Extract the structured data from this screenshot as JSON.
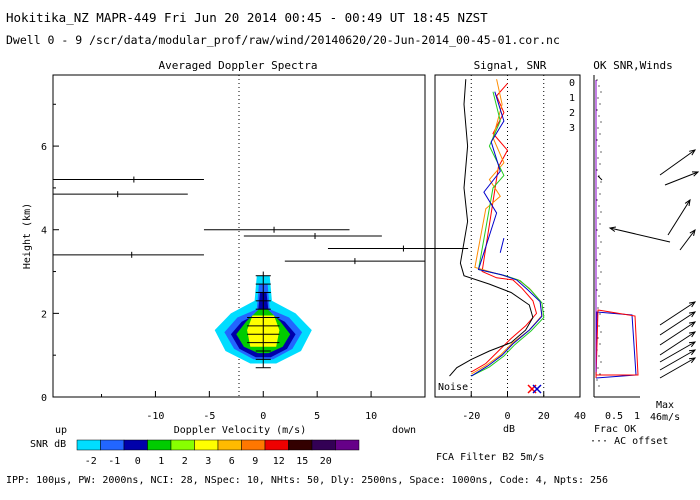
{
  "header": {
    "line1": "Hokitika_NZ  MAPR-449  Fri Jun 20 2014 00:45 - 00:49 UT 18:45 NZST",
    "line2": "Dwell  0 - 9   /scr/data/modular_prof/raw/wind/20140620/20-Jun-2014_00-45-01.cor.nc"
  },
  "footer": {
    "params": "IPP: 100μs, PW: 2000ns, NCI: 28, NSpec: 10, NHts: 50, Dly: 2500ns, Space: 1000ns, Code: 4, Npts: 256",
    "filter": "FCA Filter B2  5m/s"
  },
  "colors": {
    "snr_palette": [
      "#00ddff",
      "#2266ff",
      "#0000aa",
      "#00cc00",
      "#88ff00",
      "#ffff00",
      "#ffbb00",
      "#ff7700",
      "#ee0000",
      "#330000",
      "#330055",
      "#660088"
    ],
    "series": [
      "#ff0000",
      "#ff8c00",
      "#22cc22",
      "#0000cc"
    ],
    "axis": "#000000",
    "ac_offset": "#8800cc"
  },
  "chart_data": [
    {
      "type": "heatmap",
      "title": "Averaged Doppler Spectra",
      "xlabel": "Doppler Velocity (m/s)",
      "ylabel": "Height (km)",
      "xlim": [
        -19.5,
        15
      ],
      "ylim": [
        0,
        7.7
      ],
      "xticks": [
        -10,
        -5,
        0,
        5,
        10
      ],
      "yticks": [
        0,
        2,
        4,
        6
      ],
      "x_end_labels": {
        "left": "up",
        "right": "down"
      },
      "colorbar": {
        "label": "SNR dB",
        "ticks": [
          "-2",
          "-1",
          "0",
          "1",
          "2",
          "3",
          "6",
          "9",
          "12",
          "15",
          "20"
        ]
      },
      "snr_blob": {
        "center_velocity": 0,
        "height_range": [
          0.7,
          3.0
        ],
        "contours": [
          {
            "level": "-2",
            "points": [
              [
                -0.6,
                2.9
              ],
              [
                0.6,
                2.9
              ],
              [
                0.8,
                2.3
              ],
              [
                3.0,
                2.0
              ],
              [
                4.5,
                1.6
              ],
              [
                3.5,
                1.1
              ],
              [
                1.2,
                0.8
              ],
              [
                -1.2,
                0.8
              ],
              [
                -3.5,
                1.1
              ],
              [
                -4.5,
                1.6
              ],
              [
                -3.0,
                2.0
              ],
              [
                -0.8,
                2.3
              ]
            ]
          },
          {
            "level": "-1",
            "points": [
              [
                -0.4,
                2.7
              ],
              [
                0.4,
                2.7
              ],
              [
                0.6,
                2.1
              ],
              [
                2.4,
                1.9
              ],
              [
                3.6,
                1.55
              ],
              [
                2.7,
                1.15
              ],
              [
                0.9,
                0.9
              ],
              [
                -0.9,
                0.9
              ],
              [
                -2.7,
                1.15
              ],
              [
                -3.6,
                1.55
              ],
              [
                -2.4,
                1.9
              ],
              [
                -0.6,
                2.1
              ]
            ]
          },
          {
            "level": "0",
            "points": [
              [
                -0.3,
                2.5
              ],
              [
                0.3,
                2.5
              ],
              [
                0.5,
                2.0
              ],
              [
                2.0,
                1.8
              ],
              [
                3.0,
                1.5
              ],
              [
                2.2,
                1.15
              ],
              [
                0.7,
                0.95
              ],
              [
                -0.7,
                0.95
              ],
              [
                -2.2,
                1.15
              ],
              [
                -3.0,
                1.5
              ],
              [
                -2.0,
                1.8
              ],
              [
                -0.5,
                2.0
              ]
            ]
          },
          {
            "level": "1",
            "points": [
              [
                -0.4,
                2.1
              ],
              [
                0.4,
                2.1
              ],
              [
                1.6,
                1.8
              ],
              [
                2.5,
                1.5
              ],
              [
                1.8,
                1.2
              ],
              [
                0.5,
                1.05
              ],
              [
                -0.5,
                1.05
              ],
              [
                -1.8,
                1.2
              ],
              [
                -2.5,
                1.5
              ],
              [
                -1.6,
                1.8
              ]
            ]
          },
          {
            "level": "3",
            "points": [
              [
                -1.0,
                1.95
              ],
              [
                1.0,
                1.95
              ],
              [
                1.5,
                1.6
              ],
              [
                1.2,
                1.2
              ],
              [
                -1.2,
                1.2
              ],
              [
                -1.5,
                1.6
              ]
            ]
          }
        ]
      },
      "wide_spectra": [
        {
          "height": 5.2,
          "xmin": -19.5,
          "xmax": -5.5,
          "center": -12
        },
        {
          "height": 4.85,
          "xmin": -19.5,
          "xmax": -7,
          "center": -13.5
        },
        {
          "height": 4.0,
          "xmin": -5.5,
          "xmax": 8,
          "center": 1
        },
        {
          "height": 3.85,
          "xmin": -1.8,
          "xmax": 11,
          "center": 4.8
        },
        {
          "height": 3.55,
          "xmin": 6,
          "xmax": 19,
          "center": 13
        },
        {
          "height": 3.4,
          "xmin": -19.5,
          "xmax": -5.5,
          "center": -12.2
        },
        {
          "height": 3.25,
          "xmin": 2,
          "xmax": 15,
          "center": 8.5
        }
      ]
    },
    {
      "type": "line",
      "title": "Signal, SNR",
      "xlabel": "dB",
      "xlim": [
        -40,
        40
      ],
      "ylim": [
        0,
        7.7
      ],
      "xticks": [
        -20,
        0,
        20,
        40
      ],
      "noise_label": "Noise",
      "legend": [
        "0",
        "1",
        "2",
        "3"
      ],
      "series": [
        {
          "name": "0",
          "points": [
            [
              -20,
              0.6
            ],
            [
              -12,
              0.8
            ],
            [
              -5,
              1.1
            ],
            [
              2,
              1.4
            ],
            [
              10,
              1.7
            ],
            [
              16,
              2.0
            ],
            [
              14,
              2.3
            ],
            [
              8,
              2.6
            ],
            [
              3,
              2.8
            ],
            [
              -6,
              2.85
            ],
            [
              -14,
              3.0
            ],
            [
              -5,
              5.5
            ],
            [
              0,
              5.9
            ],
            [
              -8,
              6.3
            ],
            [
              -2,
              6.8
            ],
            [
              -6,
              7.2
            ],
            [
              0,
              7.5
            ]
          ]
        },
        {
          "name": "1",
          "points": [
            [
              -20,
              0.55
            ],
            [
              -12,
              0.75
            ],
            [
              -4,
              1.0
            ],
            [
              3,
              1.3
            ],
            [
              12,
              1.6
            ],
            [
              19,
              1.95
            ],
            [
              18,
              2.3
            ],
            [
              12,
              2.6
            ],
            [
              6,
              2.8
            ],
            [
              -2,
              2.9
            ],
            [
              -18,
              3.1
            ],
            [
              -12,
              4.5
            ],
            [
              -4,
              4.8
            ],
            [
              -10,
              5.2
            ],
            [
              -2,
              5.6
            ],
            [
              -8,
              6.2
            ],
            [
              -3,
              7.0
            ],
            [
              -6,
              7.6
            ]
          ]
        },
        {
          "name": "2",
          "points": [
            [
              -20,
              0.5
            ],
            [
              -10,
              0.72
            ],
            [
              -2,
              0.98
            ],
            [
              4,
              1.25
            ],
            [
              13,
              1.58
            ],
            [
              20,
              1.9
            ],
            [
              19,
              2.25
            ],
            [
              13,
              2.55
            ],
            [
              7,
              2.78
            ],
            [
              -1,
              2.9
            ],
            [
              -16,
              3.05
            ],
            [
              -8,
              5.0
            ],
            [
              -2,
              5.3
            ],
            [
              -10,
              6.0
            ],
            [
              -4,
              6.6
            ],
            [
              -8,
              7.3
            ]
          ]
        },
        {
          "name": "3",
          "points": [
            [
              -20,
              0.5
            ],
            [
              -11,
              0.74
            ],
            [
              -3,
              1.0
            ],
            [
              3,
              1.27
            ],
            [
              12,
              1.6
            ],
            [
              19,
              1.93
            ],
            [
              18,
              2.28
            ],
            [
              11,
              2.57
            ],
            [
              5,
              2.8
            ],
            [
              -3,
              2.92
            ],
            [
              -16,
              3.05
            ],
            [
              -6,
              4.4
            ],
            [
              -13,
              4.9
            ],
            [
              -4,
              5.4
            ],
            [
              -9,
              6.1
            ],
            [
              -2,
              6.6
            ],
            [
              -7,
              7.3
            ]
          ]
        },
        {
          "name": "black",
          "points": [
            [
              -32,
              0.5
            ],
            [
              -28,
              0.7
            ],
            [
              -20,
              0.9
            ],
            [
              -10,
              1.1
            ],
            [
              2,
              1.3
            ],
            [
              10,
              1.6
            ],
            [
              14,
              1.9
            ],
            [
              12,
              2.2
            ],
            [
              2,
              2.5
            ],
            [
              -10,
              2.7
            ],
            [
              -24,
              2.9
            ],
            [
              -26,
              3.2
            ],
            [
              -22,
              4.2
            ],
            [
              -24,
              5.0
            ],
            [
              -22,
              6.0
            ],
            [
              -24,
              7.0
            ],
            [
              -23,
              7.6
            ]
          ]
        }
      ]
    },
    {
      "type": "scatter",
      "title": "OK SNR,Winds",
      "xlabel": "Frac OK",
      "xticks": [
        "0.5",
        "1"
      ],
      "ac_offset_label": "··· AC offset",
      "max_label": "Max",
      "max_value": "46m/s"
    }
  ]
}
